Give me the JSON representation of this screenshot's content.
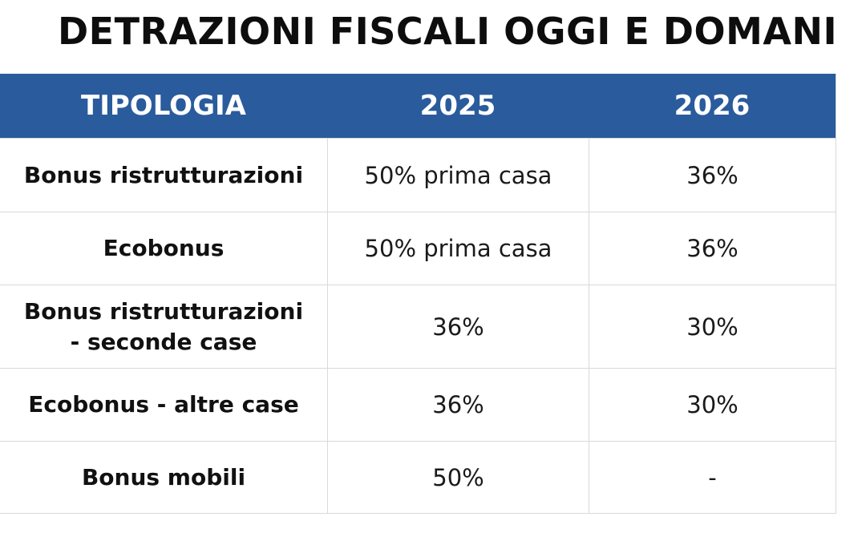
{
  "title": "DETRAZIONI FISCALI OGGI E DOMANI",
  "colors": {
    "header_bg": "#2a5b9c",
    "header_text": "#ffffff",
    "grid": "#d9d9d9"
  },
  "table": {
    "headers": [
      "TIPOLOGIA",
      "2025",
      "2026"
    ],
    "rows": [
      {
        "tipologia": "Bonus ristrutturazioni",
        "y2025": "50% prima casa",
        "y2026": "36%"
      },
      {
        "tipologia": "Ecobonus",
        "y2025": "50% prima casa",
        "y2026": "36%"
      },
      {
        "tipologia_line1": "Bonus ristrutturazioni",
        "tipologia_line2": "- seconde case",
        "y2025": "36%",
        "y2026": "30%"
      },
      {
        "tipologia": "Ecobonus - altre case",
        "y2025": "36%",
        "y2026": "30%"
      },
      {
        "tipologia": "Bonus mobili",
        "y2025": "50%",
        "y2026": "-"
      }
    ]
  }
}
